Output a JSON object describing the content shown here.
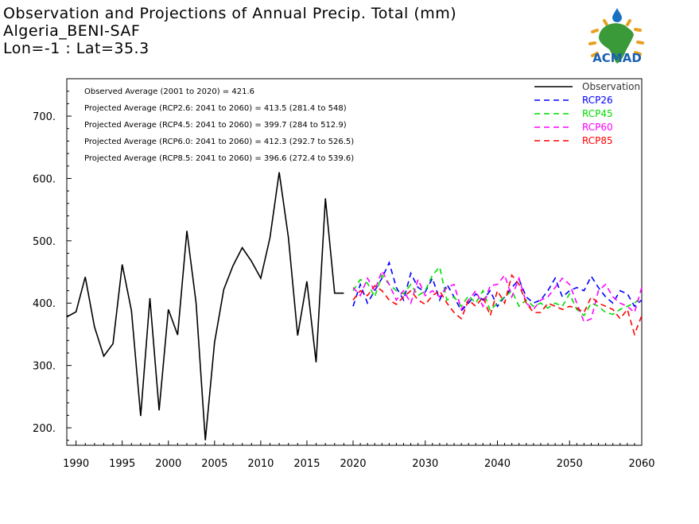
{
  "header": {
    "line1": "Observation and Projections of Annual Precip. Total (mm)",
    "line2": "Algeria_BENI-SAF",
    "line3": "Lon=-1 : Lat=35.3"
  },
  "logo": {
    "text": "ACMAD"
  },
  "stats_lines": [
    "Observed Average (2001 to 2020) = 421.6",
    "Projected Average (RCP2.6: 2041 to 2060) = 413.5 (281.4 to 548)",
    "Projected Average (RCP4.5: 2041 to 2060) = 399.7 (284 to 512.9)",
    "Projected Average (RCP6.0: 2041 to 2060) = 412.3 (292.7 to 526.5)",
    "Projected Average (RCP8.5: 2041 to 2060) = 396.6 (272.4 to 539.6)"
  ],
  "colors": {
    "Observation": "#000000",
    "RCP26": "#0000ff",
    "RCP45": "#00dd00",
    "RCP60": "#ff00ff",
    "RCP85": "#ff0000"
  },
  "chart_data": {
    "type": "line",
    "title": "Observation and Projections of Annual Precip. Total (mm)",
    "xlabel": "",
    "ylabel": "",
    "ylim": [
      172,
      760
    ],
    "yticks": [
      200,
      300,
      400,
      500,
      600,
      700
    ],
    "ytick_labels": [
      "200.",
      "300.",
      "400.",
      "500.",
      "600.",
      "700."
    ],
    "x_axis": {
      "segment1": {
        "range": [
          1989,
          2020
        ],
        "ticks": [
          1990,
          1995,
          2000,
          2005,
          2010,
          2015,
          2020
        ]
      },
      "segment2": {
        "range": [
          2020,
          2060
        ],
        "ticks": [
          2030,
          2040,
          2050,
          2060
        ]
      }
    },
    "legend_position": "top-right",
    "series": [
      {
        "name": "Observation",
        "style": "solid",
        "x": [
          1989,
          1990,
          1991,
          1992,
          1993,
          1994,
          1995,
          1996,
          1997,
          1998,
          1999,
          2000,
          2001,
          2002,
          2003,
          2004,
          2005,
          2006,
          2007,
          2008,
          2009,
          2010,
          2011,
          2012,
          2013,
          2014,
          2015,
          2016,
          2017,
          2018,
          2019
        ],
        "values": [
          378,
          386,
          442,
          362,
          315,
          335,
          462,
          388,
          219,
          408,
          228,
          390,
          349,
          516,
          400,
          180,
          337,
          422,
          460,
          489,
          467,
          440,
          505,
          610,
          505,
          348,
          435,
          305,
          568,
          416,
          416
        ]
      },
      {
        "name": "RCP26",
        "style": "dashed",
        "x": [
          2020,
          2021,
          2022,
          2023,
          2024,
          2025,
          2026,
          2027,
          2028,
          2029,
          2030,
          2031,
          2032,
          2033,
          2034,
          2035,
          2036,
          2037,
          2038,
          2039,
          2040,
          2041,
          2042,
          2043,
          2044,
          2045,
          2046,
          2047,
          2048,
          2049,
          2050,
          2051,
          2052,
          2053,
          2054,
          2055,
          2056,
          2057,
          2058,
          2059,
          2060
        ],
        "values": [
          395,
          430,
          400,
          420,
          440,
          465,
          425,
          405,
          448,
          425,
          418,
          440,
          405,
          430,
          410,
          388,
          400,
          415,
          405,
          420,
          395,
          410,
          425,
          438,
          410,
          400,
          405,
          420,
          440,
          410,
          420,
          425,
          420,
          443,
          425,
          410,
          400,
          420,
          415,
          395,
          405
        ]
      },
      {
        "name": "RCP45",
        "style": "dashed",
        "x": [
          2020,
          2021,
          2022,
          2023,
          2024,
          2025,
          2026,
          2027,
          2028,
          2029,
          2030,
          2031,
          2032,
          2033,
          2034,
          2035,
          2036,
          2037,
          2038,
          2039,
          2040,
          2041,
          2042,
          2043,
          2044,
          2045,
          2046,
          2047,
          2048,
          2049,
          2050,
          2051,
          2052,
          2053,
          2054,
          2055,
          2056,
          2057,
          2058,
          2059,
          2060
        ],
        "values": [
          420,
          438,
          432,
          410,
          445,
          430,
          420,
          415,
          430,
          412,
          420,
          445,
          458,
          405,
          410,
          395,
          412,
          400,
          420,
          388,
          400,
          410,
          420,
          395,
          405,
          395,
          400,
          392,
          400,
          395,
          415,
          390,
          380,
          400,
          395,
          385,
          382,
          390,
          395,
          400,
          410
        ]
      },
      {
        "name": "RCP60",
        "style": "dashed",
        "x": [
          2020,
          2021,
          2022,
          2023,
          2024,
          2025,
          2026,
          2027,
          2028,
          2029,
          2030,
          2031,
          2032,
          2033,
          2034,
          2035,
          2036,
          2037,
          2038,
          2039,
          2040,
          2041,
          2042,
          2043,
          2044,
          2045,
          2046,
          2047,
          2048,
          2049,
          2050,
          2051,
          2052,
          2053,
          2054,
          2055,
          2056,
          2057,
          2058,
          2059,
          2060
        ],
        "values": [
          425,
          412,
          440,
          420,
          452,
          430,
          405,
          420,
          400,
          438,
          412,
          420,
          410,
          425,
          430,
          390,
          405,
          420,
          395,
          428,
          430,
          445,
          410,
          440,
          400,
          390,
          405,
          410,
          425,
          440,
          430,
          400,
          370,
          375,
          420,
          430,
          410,
          400,
          395,
          385,
          425
        ]
      },
      {
        "name": "RCP85",
        "style": "dashed",
        "x": [
          2020,
          2021,
          2022,
          2023,
          2024,
          2025,
          2026,
          2027,
          2028,
          2029,
          2030,
          2031,
          2032,
          2033,
          2034,
          2035,
          2036,
          2037,
          2038,
          2039,
          2040,
          2041,
          2042,
          2043,
          2044,
          2045,
          2046,
          2047,
          2048,
          2049,
          2050,
          2051,
          2052,
          2053,
          2054,
          2055,
          2056,
          2057,
          2058,
          2059,
          2060
        ],
        "values": [
          405,
          420,
          412,
          428,
          420,
          405,
          398,
          410,
          420,
          405,
          398,
          412,
          420,
          400,
          385,
          375,
          405,
          395,
          410,
          380,
          420,
          400,
          445,
          430,
          400,
          385,
          385,
          400,
          395,
          390,
          395,
          392,
          385,
          410,
          400,
          395,
          390,
          375,
          390,
          350,
          380
        ]
      }
    ]
  }
}
